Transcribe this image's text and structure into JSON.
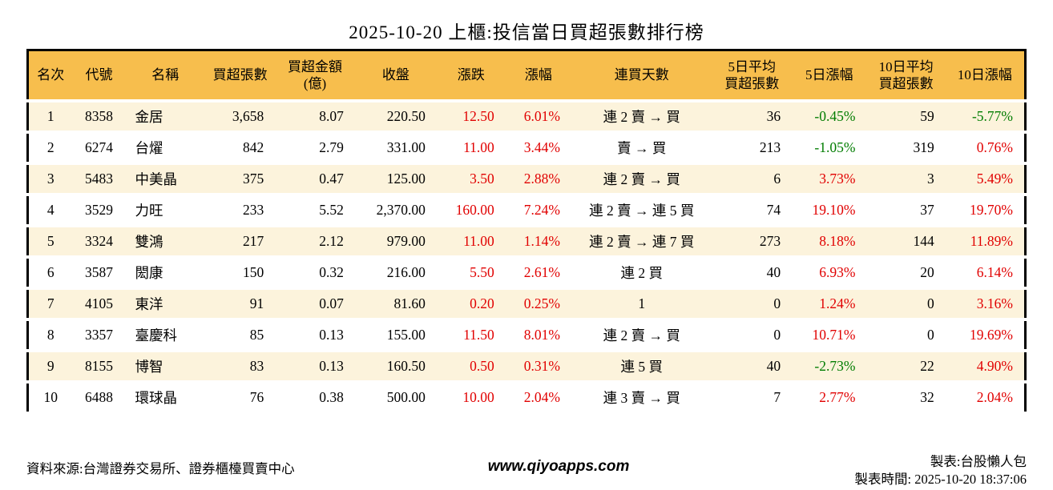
{
  "title": "2025-10-20 上櫃:投信當日買超張數排行榜",
  "accent_colors": {
    "header_bg": "#f7be4d",
    "row_stripe_bg": "#fcf3dc",
    "up_red": "#e10000",
    "down_green": "#007c00"
  },
  "table": {
    "column_keys": [
      "rank",
      "code",
      "name",
      "net-buy-shares",
      "net-buy-amount",
      "close",
      "change",
      "change-pct",
      "streak-days",
      "avg5-net-buy",
      "pct5-change",
      "avg10-net-buy",
      "pct10-change"
    ],
    "headers": [
      "名次",
      "代號",
      "名稱",
      "買超張數",
      "買超金額\n(億)",
      "收盤",
      "漲跌",
      "漲幅",
      "連買天數",
      "5日平均\n買超張數",
      "5日漲幅",
      "10日平均\n買超張數",
      "10日漲幅"
    ],
    "rows": [
      {
        "cells": [
          "1",
          "8358",
          "金居",
          "3,658",
          "8.07",
          "220.50",
          "12.50",
          "6.01%",
          "連 2 賣 → 買",
          "36",
          "-0.45%",
          "59",
          "-5.77%"
        ],
        "colors": [
          "",
          "",
          "",
          "",
          "",
          "",
          "red",
          "red",
          "",
          "",
          "green",
          "",
          "green"
        ]
      },
      {
        "cells": [
          "2",
          "6274",
          "台燿",
          "842",
          "2.79",
          "331.00",
          "11.00",
          "3.44%",
          "賣 → 買",
          "213",
          "-1.05%",
          "319",
          "0.76%"
        ],
        "colors": [
          "",
          "",
          "",
          "",
          "",
          "",
          "red",
          "red",
          "",
          "",
          "green",
          "",
          "red"
        ]
      },
      {
        "cells": [
          "3",
          "5483",
          "中美晶",
          "375",
          "0.47",
          "125.00",
          "3.50",
          "2.88%",
          "連 2 賣 → 買",
          "6",
          "3.73%",
          "3",
          "5.49%"
        ],
        "colors": [
          "",
          "",
          "",
          "",
          "",
          "",
          "red",
          "red",
          "",
          "",
          "red",
          "",
          "red"
        ]
      },
      {
        "cells": [
          "4",
          "3529",
          "力旺",
          "233",
          "5.52",
          "2,370.00",
          "160.00",
          "7.24%",
          "連 2 賣 → 連 5 買",
          "74",
          "19.10%",
          "37",
          "19.70%"
        ],
        "colors": [
          "",
          "",
          "",
          "",
          "",
          "",
          "red",
          "red",
          "",
          "",
          "red",
          "",
          "red"
        ]
      },
      {
        "cells": [
          "5",
          "3324",
          "雙鴻",
          "217",
          "2.12",
          "979.00",
          "11.00",
          "1.14%",
          "連 2 賣 → 連 7 買",
          "273",
          "8.18%",
          "144",
          "11.89%"
        ],
        "colors": [
          "",
          "",
          "",
          "",
          "",
          "",
          "red",
          "red",
          "",
          "",
          "red",
          "",
          "red"
        ]
      },
      {
        "cells": [
          "6",
          "3587",
          "閎康",
          "150",
          "0.32",
          "216.00",
          "5.50",
          "2.61%",
          "連 2 買",
          "40",
          "6.93%",
          "20",
          "6.14%"
        ],
        "colors": [
          "",
          "",
          "",
          "",
          "",
          "",
          "red",
          "red",
          "",
          "",
          "red",
          "",
          "red"
        ]
      },
      {
        "cells": [
          "7",
          "4105",
          "東洋",
          "91",
          "0.07",
          "81.60",
          "0.20",
          "0.25%",
          "1",
          "0",
          "1.24%",
          "0",
          "3.16%"
        ],
        "colors": [
          "",
          "",
          "",
          "",
          "",
          "",
          "red",
          "red",
          "",
          "",
          "red",
          "",
          "red"
        ]
      },
      {
        "cells": [
          "8",
          "3357",
          "臺慶科",
          "85",
          "0.13",
          "155.00",
          "11.50",
          "8.01%",
          "連 2 賣 → 買",
          "0",
          "10.71%",
          "0",
          "19.69%"
        ],
        "colors": [
          "",
          "",
          "",
          "",
          "",
          "",
          "red",
          "red",
          "",
          "",
          "red",
          "",
          "red"
        ]
      },
      {
        "cells": [
          "9",
          "8155",
          "博智",
          "83",
          "0.13",
          "160.50",
          "0.50",
          "0.31%",
          "連 5 買",
          "40",
          "-2.73%",
          "22",
          "4.90%"
        ],
        "colors": [
          "",
          "",
          "",
          "",
          "",
          "",
          "red",
          "red",
          "",
          "",
          "green",
          "",
          "red"
        ]
      },
      {
        "cells": [
          "10",
          "6488",
          "環球晶",
          "76",
          "0.38",
          "500.00",
          "10.00",
          "2.04%",
          "連 3 賣 → 買",
          "7",
          "2.77%",
          "32",
          "2.04%"
        ],
        "colors": [
          "",
          "",
          "",
          "",
          "",
          "",
          "red",
          "red",
          "",
          "",
          "red",
          "",
          "red"
        ]
      }
    ]
  },
  "footer": {
    "source": "資料來源:台灣證券交易所、證券櫃檯買賣中心",
    "website": "www.qiyoapps.com",
    "author": "製表:台股懶人包",
    "timestamp": "製表時間: 2025-10-20 18:37:06"
  }
}
